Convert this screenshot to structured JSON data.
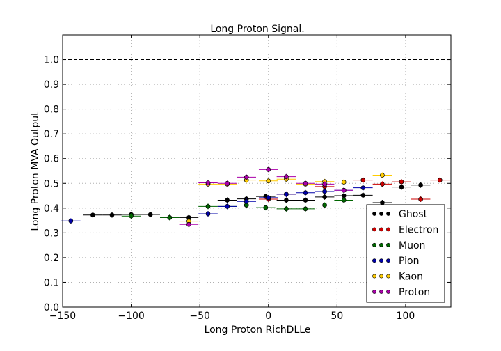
{
  "chart_data": {
    "type": "scatter",
    "title": "Long Proton Signal.",
    "xlabel": "Long Proton RichDLLe",
    "ylabel": "Long Proton MVA Output",
    "xlim": [
      -150,
      133
    ],
    "ylim": [
      0.0,
      1.1
    ],
    "xticks": [
      -150,
      -100,
      -50,
      0,
      50,
      100
    ],
    "xtick_labels": [
      "−150",
      "−100",
      "−50",
      "0",
      "50",
      "100"
    ],
    "yticks": [
      0.0,
      0.1,
      0.2,
      0.3,
      0.4,
      0.5,
      0.6,
      0.7,
      0.8,
      0.9,
      1.0
    ],
    "ytick_labels": [
      "0.0",
      "0.1",
      "0.2",
      "0.3",
      "0.4",
      "0.5",
      "0.6",
      "0.7",
      "0.8",
      "0.9",
      "1.0"
    ],
    "grid": true,
    "reference_line": 1.0,
    "legend_position": "lower right",
    "series": [
      {
        "name": "Ghost",
        "color": "#000000",
        "points": [
          [
            -128,
            0.372
          ],
          [
            -114,
            0.372
          ],
          [
            -100,
            0.374
          ],
          [
            -86,
            0.374
          ],
          [
            -72,
            0.362
          ],
          [
            -58,
            0.362
          ],
          [
            -30,
            0.432
          ],
          [
            -16,
            0.437
          ],
          [
            -2,
            0.447
          ],
          [
            13,
            0.432
          ],
          [
            27,
            0.432
          ],
          [
            41,
            0.445
          ],
          [
            55,
            0.45
          ],
          [
            69,
            0.452
          ],
          [
            83,
            0.422
          ],
          [
            97,
            0.485
          ],
          [
            111,
            0.493
          ]
        ]
      },
      {
        "name": "Electron",
        "color": "#cc0000",
        "points": [
          [
            -16,
            0.412
          ],
          [
            0,
            0.436
          ],
          [
            13,
            0.456
          ],
          [
            41,
            0.487
          ],
          [
            69,
            0.513
          ],
          [
            83,
            0.497
          ],
          [
            97,
            0.506
          ],
          [
            111,
            0.436
          ],
          [
            125,
            0.513
          ]
        ]
      },
      {
        "name": "Muon",
        "color": "#006600",
        "points": [
          [
            -100,
            0.368
          ],
          [
            -72,
            0.362
          ],
          [
            -44,
            0.407
          ],
          [
            -30,
            0.407
          ],
          [
            -16,
            0.412
          ],
          [
            -2,
            0.402
          ],
          [
            13,
            0.397
          ],
          [
            27,
            0.397
          ],
          [
            41,
            0.412
          ],
          [
            55,
            0.432
          ]
        ]
      },
      {
        "name": "Pion",
        "color": "#0000aa",
        "points": [
          [
            -144,
            0.348
          ],
          [
            -44,
            0.377
          ],
          [
            -30,
            0.407
          ],
          [
            -16,
            0.427
          ],
          [
            0,
            0.442
          ],
          [
            13,
            0.456
          ],
          [
            27,
            0.462
          ],
          [
            41,
            0.467
          ],
          [
            55,
            0.472
          ],
          [
            69,
            0.482
          ]
        ]
      },
      {
        "name": "Kaon",
        "color": "#ffcc00",
        "points": [
          [
            -58,
            0.347
          ],
          [
            -44,
            0.497
          ],
          [
            -30,
            0.497
          ],
          [
            -16,
            0.513
          ],
          [
            0,
            0.51
          ],
          [
            13,
            0.517
          ],
          [
            27,
            0.497
          ],
          [
            41,
            0.507
          ],
          [
            55,
            0.505
          ],
          [
            83,
            0.533
          ]
        ]
      },
      {
        "name": "Proton",
        "color": "#aa00aa",
        "points": [
          [
            -58,
            0.334
          ],
          [
            -44,
            0.502
          ],
          [
            -30,
            0.5
          ],
          [
            -16,
            0.525
          ],
          [
            0,
            0.556
          ],
          [
            13,
            0.527
          ],
          [
            27,
            0.5
          ],
          [
            41,
            0.497
          ],
          [
            55,
            0.472
          ]
        ]
      }
    ]
  }
}
